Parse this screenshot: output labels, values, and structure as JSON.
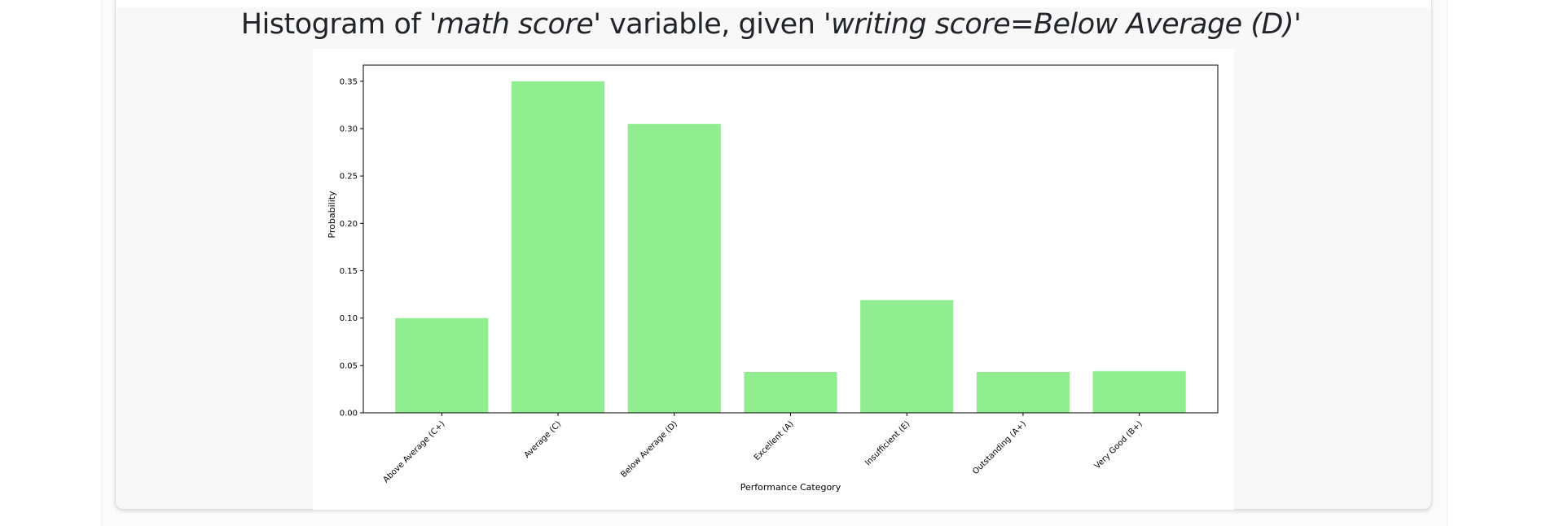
{
  "title": {
    "prefix": "Histogram of '",
    "var": "math score",
    "mid": "' variable, given '",
    "cond": "writing score=Below Average (D)",
    "suffix": "'"
  },
  "chart_data": {
    "type": "bar",
    "categories": [
      "Above Average (C+)",
      "Average (C)",
      "Below Average (D)",
      "Excellent (A)",
      "Insufficient (E)",
      "Outstanding (A+)",
      "Very Good (B+)"
    ],
    "values": [
      0.1,
      0.35,
      0.305,
      0.043,
      0.119,
      0.043,
      0.044
    ],
    "xlabel": "Performance Category",
    "ylabel": "Probability",
    "ylim": [
      0,
      0.367
    ],
    "yticks": [
      "0.00",
      "0.05",
      "0.10",
      "0.15",
      "0.20",
      "0.25",
      "0.30",
      "0.35"
    ],
    "ytick_values": [
      0,
      0.05,
      0.1,
      0.15,
      0.2,
      0.25,
      0.3,
      0.35
    ],
    "bar_color": "#90ee90",
    "grid": false
  }
}
